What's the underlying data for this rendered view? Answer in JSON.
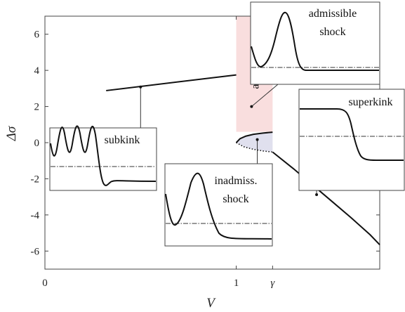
{
  "chart_data": {
    "type": "line",
    "xlabel": "V",
    "ylabel": "Δσ",
    "x_ticks": [
      {
        "value": 0,
        "label": "0"
      },
      {
        "value": 1,
        "label": "1"
      },
      {
        "value": 1.19,
        "label": "γ"
      }
    ],
    "y_ticks": [
      {
        "value": 6,
        "label": "6"
      },
      {
        "value": 4,
        "label": "4"
      },
      {
        "value": 2,
        "label": "2"
      },
      {
        "value": 0,
        "label": "0"
      },
      {
        "value": -2,
        "label": "-2"
      },
      {
        "value": -4,
        "label": "-4"
      },
      {
        "value": -6,
        "label": "-6"
      }
    ],
    "xlim": [
      0,
      1.75
    ],
    "ylim": [
      -7,
      7
    ],
    "grid": false,
    "regions": [
      {
        "label": "admissible",
        "x_range": [
          1,
          1.19
        ],
        "color": "#f9dede"
      },
      {
        "label": "",
        "x_range": [
          1,
          1.19
        ],
        "color": "#e0e0ee"
      }
    ],
    "series": [
      {
        "style": "solid",
        "x": [
          0.32,
          1.0
        ],
        "y": [
          2.88,
          3.75
        ]
      },
      {
        "style": "solid",
        "x": [
          1.0,
          1.02,
          1.05,
          1.09,
          1.14,
          1.19
        ],
        "y": [
          0.0,
          0.22,
          0.36,
          0.46,
          0.53,
          0.58
        ]
      },
      {
        "style": "dotted",
        "x": [
          1.0,
          1.04,
          1.09,
          1.14,
          1.19
        ],
        "y": [
          0.0,
          -0.23,
          -0.37,
          -0.46,
          -0.52
        ]
      },
      {
        "style": "solid",
        "x": [
          1.19,
          1.3,
          1.4,
          1.5,
          1.6,
          1.7,
          1.75
        ],
        "y": [
          -0.52,
          -1.45,
          -2.35,
          -3.25,
          -4.15,
          -5.1,
          -5.65
        ]
      }
    ],
    "insets": [
      {
        "label": "subkink",
        "anchor": [
          0.5,
          3.08
        ]
      },
      {
        "label": "admissible\nshock",
        "anchor": [
          1.08,
          2.0
        ]
      },
      {
        "label": "inadmiss.\nshock",
        "anchor": [
          1.11,
          0.17
        ]
      },
      {
        "label": "superkink",
        "anchor": [
          1.42,
          -2.88
        ]
      }
    ]
  }
}
